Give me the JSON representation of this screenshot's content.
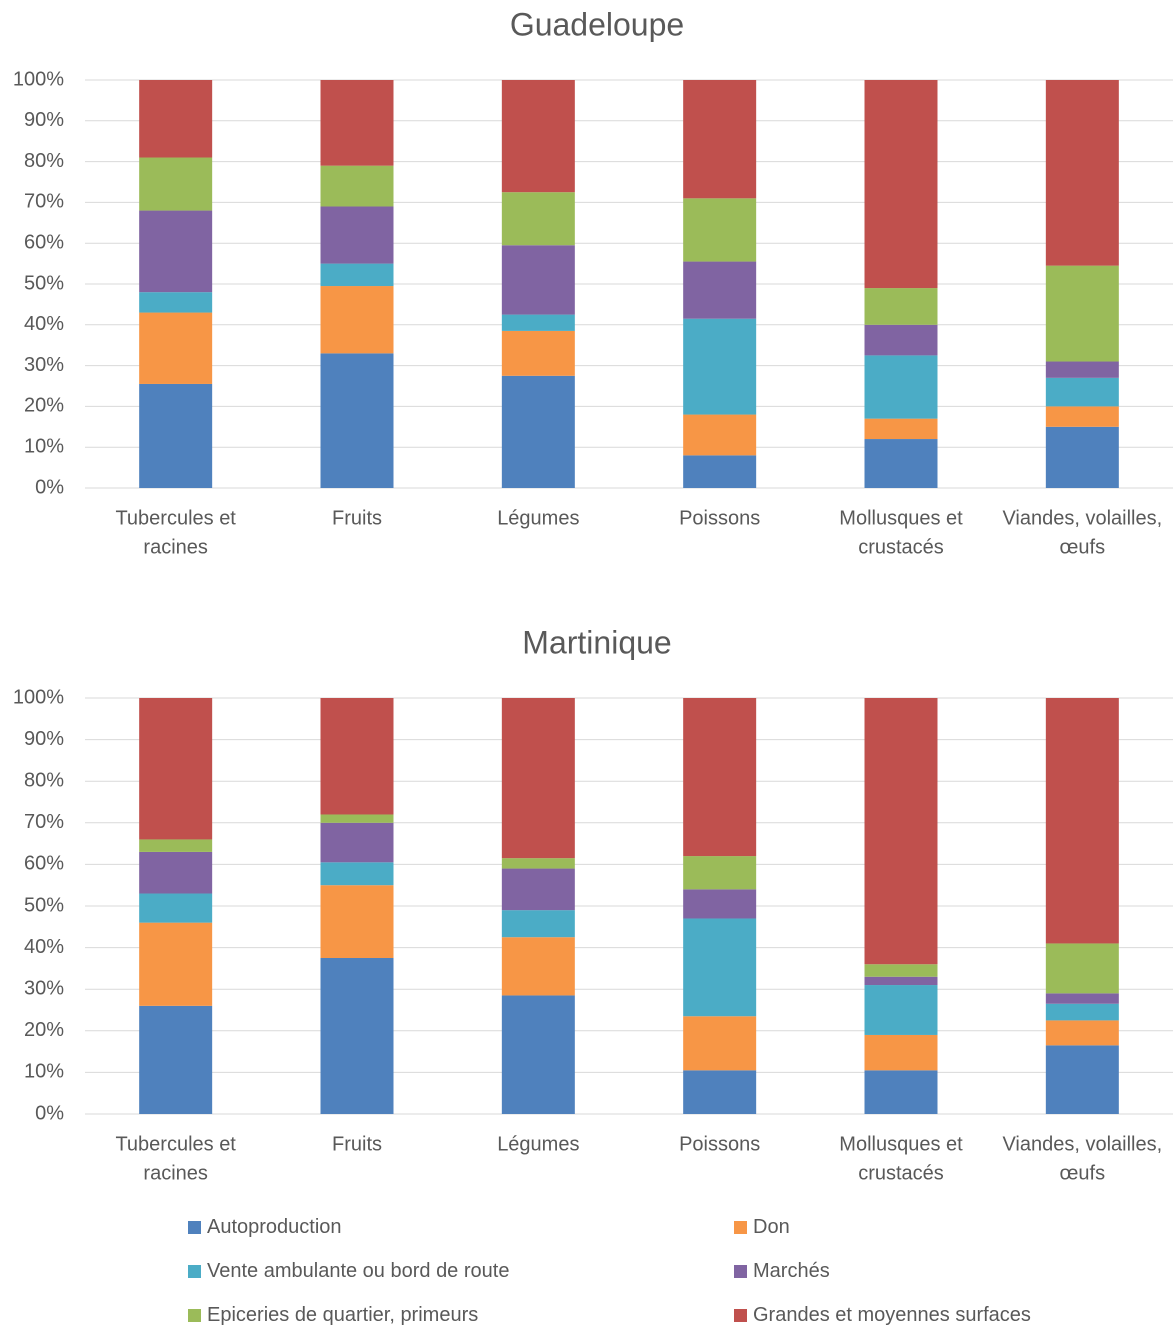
{
  "chart_data": [
    {
      "type": "bar",
      "stacked": true,
      "percent": true,
      "title": "Guadeloupe",
      "categories": [
        [
          "Tubercules et",
          "racines"
        ],
        [
          "Fruits"
        ],
        [
          "Légumes"
        ],
        [
          "Poissons"
        ],
        [
          "Mollusques et",
          "crustacés"
        ],
        [
          "Viandes, volailles,",
          "œufs"
        ]
      ],
      "ylim": [
        0,
        100
      ],
      "yticks": [
        "0%",
        "10%",
        "20%",
        "30%",
        "40%",
        "50%",
        "60%",
        "70%",
        "80%",
        "90%",
        "100%"
      ],
      "grid": true,
      "series": [
        {
          "name": "Autoproduction",
          "values": [
            25.5,
            33,
            27.5,
            8,
            12,
            15
          ]
        },
        {
          "name": "Don",
          "values": [
            17.5,
            16.5,
            11,
            10,
            5,
            5
          ]
        },
        {
          "name": "Vente ambulante ou bord de route",
          "values": [
            5,
            5.5,
            4,
            23.5,
            15.5,
            7
          ]
        },
        {
          "name": "Marchés",
          "values": [
            20,
            14,
            17,
            14,
            7.5,
            4
          ]
        },
        {
          "name": "Epiceries de quartier, primeurs",
          "values": [
            13,
            10,
            13,
            15.5,
            9,
            23.5
          ]
        },
        {
          "name": "Grandes et moyennes surfaces",
          "values": [
            19,
            21,
            27.5,
            29,
            51,
            45.5
          ]
        }
      ]
    },
    {
      "type": "bar",
      "stacked": true,
      "percent": true,
      "title": "Martinique",
      "categories": [
        [
          "Tubercules et",
          "racines"
        ],
        [
          "Fruits"
        ],
        [
          "Légumes"
        ],
        [
          "Poissons"
        ],
        [
          "Mollusques et",
          "crustacés"
        ],
        [
          "Viandes, volailles,",
          "œufs"
        ]
      ],
      "ylim": [
        0,
        100
      ],
      "yticks": [
        "0%",
        "10%",
        "20%",
        "30%",
        "40%",
        "50%",
        "60%",
        "70%",
        "80%",
        "90%",
        "100%"
      ],
      "grid": true,
      "series": [
        {
          "name": "Autoproduction",
          "values": [
            26,
            37.5,
            28.5,
            10.5,
            10.5,
            16.5
          ]
        },
        {
          "name": "Don",
          "values": [
            20,
            17.5,
            14,
            13,
            8.5,
            6
          ]
        },
        {
          "name": "Vente ambulante ou bord de route",
          "values": [
            7,
            5.5,
            6.5,
            23.5,
            12,
            4
          ]
        },
        {
          "name": "Marchés",
          "values": [
            10,
            9.5,
            10,
            7,
            2,
            2.5
          ]
        },
        {
          "name": "Epiceries de quartier, primeurs",
          "values": [
            3,
            2,
            2.5,
            8,
            3,
            12
          ]
        },
        {
          "name": "Grandes et moyennes surfaces",
          "values": [
            34,
            28,
            38.5,
            38,
            64,
            59
          ]
        }
      ]
    }
  ],
  "legend": {
    "placement": "bottom",
    "items": [
      {
        "label": "Autoproduction",
        "color": "#4f81bd"
      },
      {
        "label": "Don",
        "color": "#f79646"
      },
      {
        "label": "Vente ambulante ou bord de route",
        "color": "#4bacc6"
      },
      {
        "label": "Marchés",
        "color": "#8064a2"
      },
      {
        "label": "Epiceries de quartier, primeurs",
        "color": "#9bbb59"
      },
      {
        "label": "Grandes et moyennes surfaces",
        "color": "#c0504d"
      }
    ]
  },
  "colors": {
    "grid": "#d9d9d9",
    "text": "#595959"
  }
}
